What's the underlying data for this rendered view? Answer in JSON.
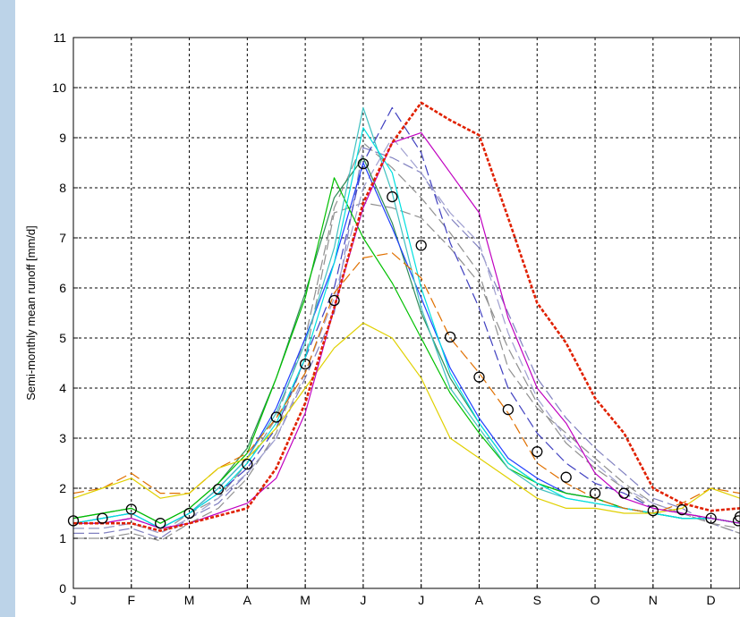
{
  "chart_data": {
    "type": "line",
    "ylabel": "Semi-monthly mean runoff [mm/d]",
    "ylim": [
      0,
      11
    ],
    "xlim": [
      0,
      23
    ],
    "y_ticks": [
      "0",
      "1",
      "2",
      "3",
      "4",
      "5",
      "6",
      "7",
      "8",
      "9",
      "10",
      "11"
    ],
    "x_ticks": [
      {
        "x": 0,
        "label": "J"
      },
      {
        "x": 2,
        "label": "F"
      },
      {
        "x": 4,
        "label": "M"
      },
      {
        "x": 6,
        "label": "A"
      },
      {
        "x": 8,
        "label": "M"
      },
      {
        "x": 10,
        "label": "J"
      },
      {
        "x": 12,
        "label": "J"
      },
      {
        "x": 14,
        "label": "A"
      },
      {
        "x": 16,
        "label": "S"
      },
      {
        "x": 18,
        "label": "O"
      },
      {
        "x": 20,
        "label": "N"
      },
      {
        "x": 22,
        "label": "D"
      }
    ],
    "grid": true,
    "series": [
      {
        "color": "#8080c0",
        "dash": "long",
        "values": [
          1.1,
          1.1,
          1.2,
          1.0,
          1.4,
          1.7,
          2.3,
          3.0,
          4.2,
          5.5,
          8.8,
          8.6,
          8.3,
          7.4,
          6.8,
          5.5,
          4.2,
          3.4,
          2.8,
          2.3,
          1.8,
          1.6,
          1.3,
          1.1
        ]
      },
      {
        "color": "#909090",
        "dash": "long",
        "values": [
          1.0,
          1.0,
          1.1,
          0.95,
          1.3,
          1.6,
          2.2,
          3.1,
          4.6,
          7.5,
          7.7,
          7.6,
          7.4,
          6.8,
          6.1,
          4.8,
          3.7,
          2.9,
          2.4,
          2.0,
          1.6,
          1.5,
          1.3,
          1.1
        ]
      },
      {
        "color": "#909090",
        "dash": "long",
        "values": [
          1.2,
          1.2,
          1.3,
          1.1,
          1.5,
          1.8,
          2.5,
          3.4,
          5.0,
          7.6,
          8.9,
          8.4,
          7.8,
          7.1,
          6.3,
          4.4,
          3.6,
          3.1,
          2.6,
          2.1,
          1.7,
          1.5,
          1.3,
          1.2
        ]
      },
      {
        "color": "#4040c0",
        "dash": "long",
        "values": [
          1.3,
          1.3,
          1.4,
          1.2,
          1.5,
          1.9,
          2.4,
          3.2,
          4.6,
          6.0,
          8.5,
          9.6,
          8.7,
          6.9,
          5.6,
          4.0,
          3.1,
          2.5,
          2.1,
          1.9,
          1.6,
          1.5,
          1.4,
          1.3
        ]
      },
      {
        "color": "#a0a0d0",
        "dash": "long",
        "values": [
          1.2,
          1.2,
          1.3,
          1.1,
          1.4,
          1.8,
          2.3,
          3.0,
          4.3,
          5.8,
          8.0,
          9.0,
          8.3,
          7.5,
          6.9,
          5.1,
          3.8,
          3.0,
          2.5,
          2.0,
          1.7,
          1.5,
          1.4,
          1.3
        ]
      },
      {
        "color": "#2e8b57",
        "dash": "solid",
        "values": [
          1.4,
          1.5,
          1.6,
          1.3,
          1.6,
          2.1,
          2.8,
          4.2,
          5.9,
          7.8,
          8.6,
          7.3,
          5.5,
          4.2,
          3.3,
          2.5,
          2.1,
          1.9,
          1.8,
          1.6,
          1.5,
          1.4,
          1.4,
          1.3
        ]
      },
      {
        "color": "#2040ff",
        "dash": "solid",
        "values": [
          1.3,
          1.4,
          1.5,
          1.2,
          1.5,
          2.0,
          2.6,
          3.6,
          5.0,
          6.5,
          8.5,
          7.2,
          5.8,
          4.4,
          3.4,
          2.6,
          2.2,
          1.9,
          1.8,
          1.6,
          1.5,
          1.4,
          1.4,
          1.3
        ]
      },
      {
        "color": "#00c000",
        "dash": "solid",
        "values": [
          1.4,
          1.5,
          1.6,
          1.3,
          1.6,
          2.1,
          2.7,
          4.2,
          5.8,
          8.2,
          7.0,
          6.1,
          5.0,
          3.9,
          3.1,
          2.4,
          2.1,
          1.9,
          1.8,
          1.6,
          1.5,
          1.4,
          1.4,
          1.3
        ]
      },
      {
        "color": "#40c0c0",
        "dash": "solid",
        "values": [
          1.3,
          1.4,
          1.5,
          1.2,
          1.5,
          2.0,
          2.6,
          3.5,
          4.9,
          6.8,
          9.6,
          7.9,
          5.6,
          4.0,
          3.2,
          2.4,
          2.0,
          1.8,
          1.7,
          1.6,
          1.5,
          1.4,
          1.4,
          1.3
        ]
      },
      {
        "color": "#00e0e0",
        "dash": "solid",
        "values": [
          1.3,
          1.4,
          1.5,
          1.2,
          1.5,
          1.9,
          2.5,
          3.3,
          4.6,
          6.5,
          9.2,
          8.3,
          6.0,
          4.3,
          3.3,
          2.5,
          2.1,
          1.8,
          1.7,
          1.6,
          1.5,
          1.4,
          1.4,
          1.3
        ]
      },
      {
        "color": "#e07000",
        "dash": "long",
        "values": [
          1.9,
          2.0,
          2.3,
          1.9,
          1.9,
          2.4,
          2.7,
          3.4,
          4.3,
          5.9,
          6.6,
          6.7,
          6.2,
          5.0,
          4.3,
          3.5,
          2.5,
          2.1,
          1.8,
          1.6,
          1.5,
          1.7,
          2.0,
          1.9
        ]
      },
      {
        "color": "#e0d000",
        "dash": "solid",
        "values": [
          1.8,
          2.0,
          2.2,
          1.8,
          1.9,
          2.4,
          2.6,
          3.2,
          4.0,
          4.8,
          5.3,
          5.0,
          4.2,
          3.0,
          2.6,
          2.2,
          1.8,
          1.6,
          1.6,
          1.5,
          1.5,
          1.6,
          2.0,
          1.8
        ]
      },
      {
        "color": "#c000c0",
        "dash": "solid",
        "values": [
          1.3,
          1.3,
          1.4,
          1.2,
          1.3,
          1.5,
          1.7,
          2.2,
          3.5,
          5.6,
          7.6,
          8.9,
          9.1,
          8.3,
          7.5,
          5.4,
          4.0,
          3.3,
          2.3,
          1.8,
          1.6,
          1.5,
          1.4,
          1.3
        ]
      },
      {
        "color": "#e02000",
        "dash": "dotted-heavy",
        "values": [
          1.3,
          1.3,
          1.3,
          1.15,
          1.3,
          1.45,
          1.6,
          2.4,
          3.7,
          5.6,
          7.7,
          8.9,
          9.7,
          9.35,
          9.05,
          7.4,
          5.7,
          4.9,
          3.8,
          3.1,
          2.0,
          1.7,
          1.55,
          1.6
        ]
      },
      {
        "color": "#000000",
        "dash": "none",
        "marker": "circle",
        "name": "",
        "values": [
          1.35,
          1.4,
          1.58,
          1.3,
          1.5,
          1.98,
          2.48,
          3.42,
          4.48,
          5.75,
          8.48,
          7.82,
          6.85,
          5.02,
          4.22,
          3.57,
          2.73,
          2.22,
          1.9,
          1.9,
          1.55,
          1.57,
          1.4,
          1.43
        ]
      }
    ],
    "mean_last_point": 1.35
  }
}
